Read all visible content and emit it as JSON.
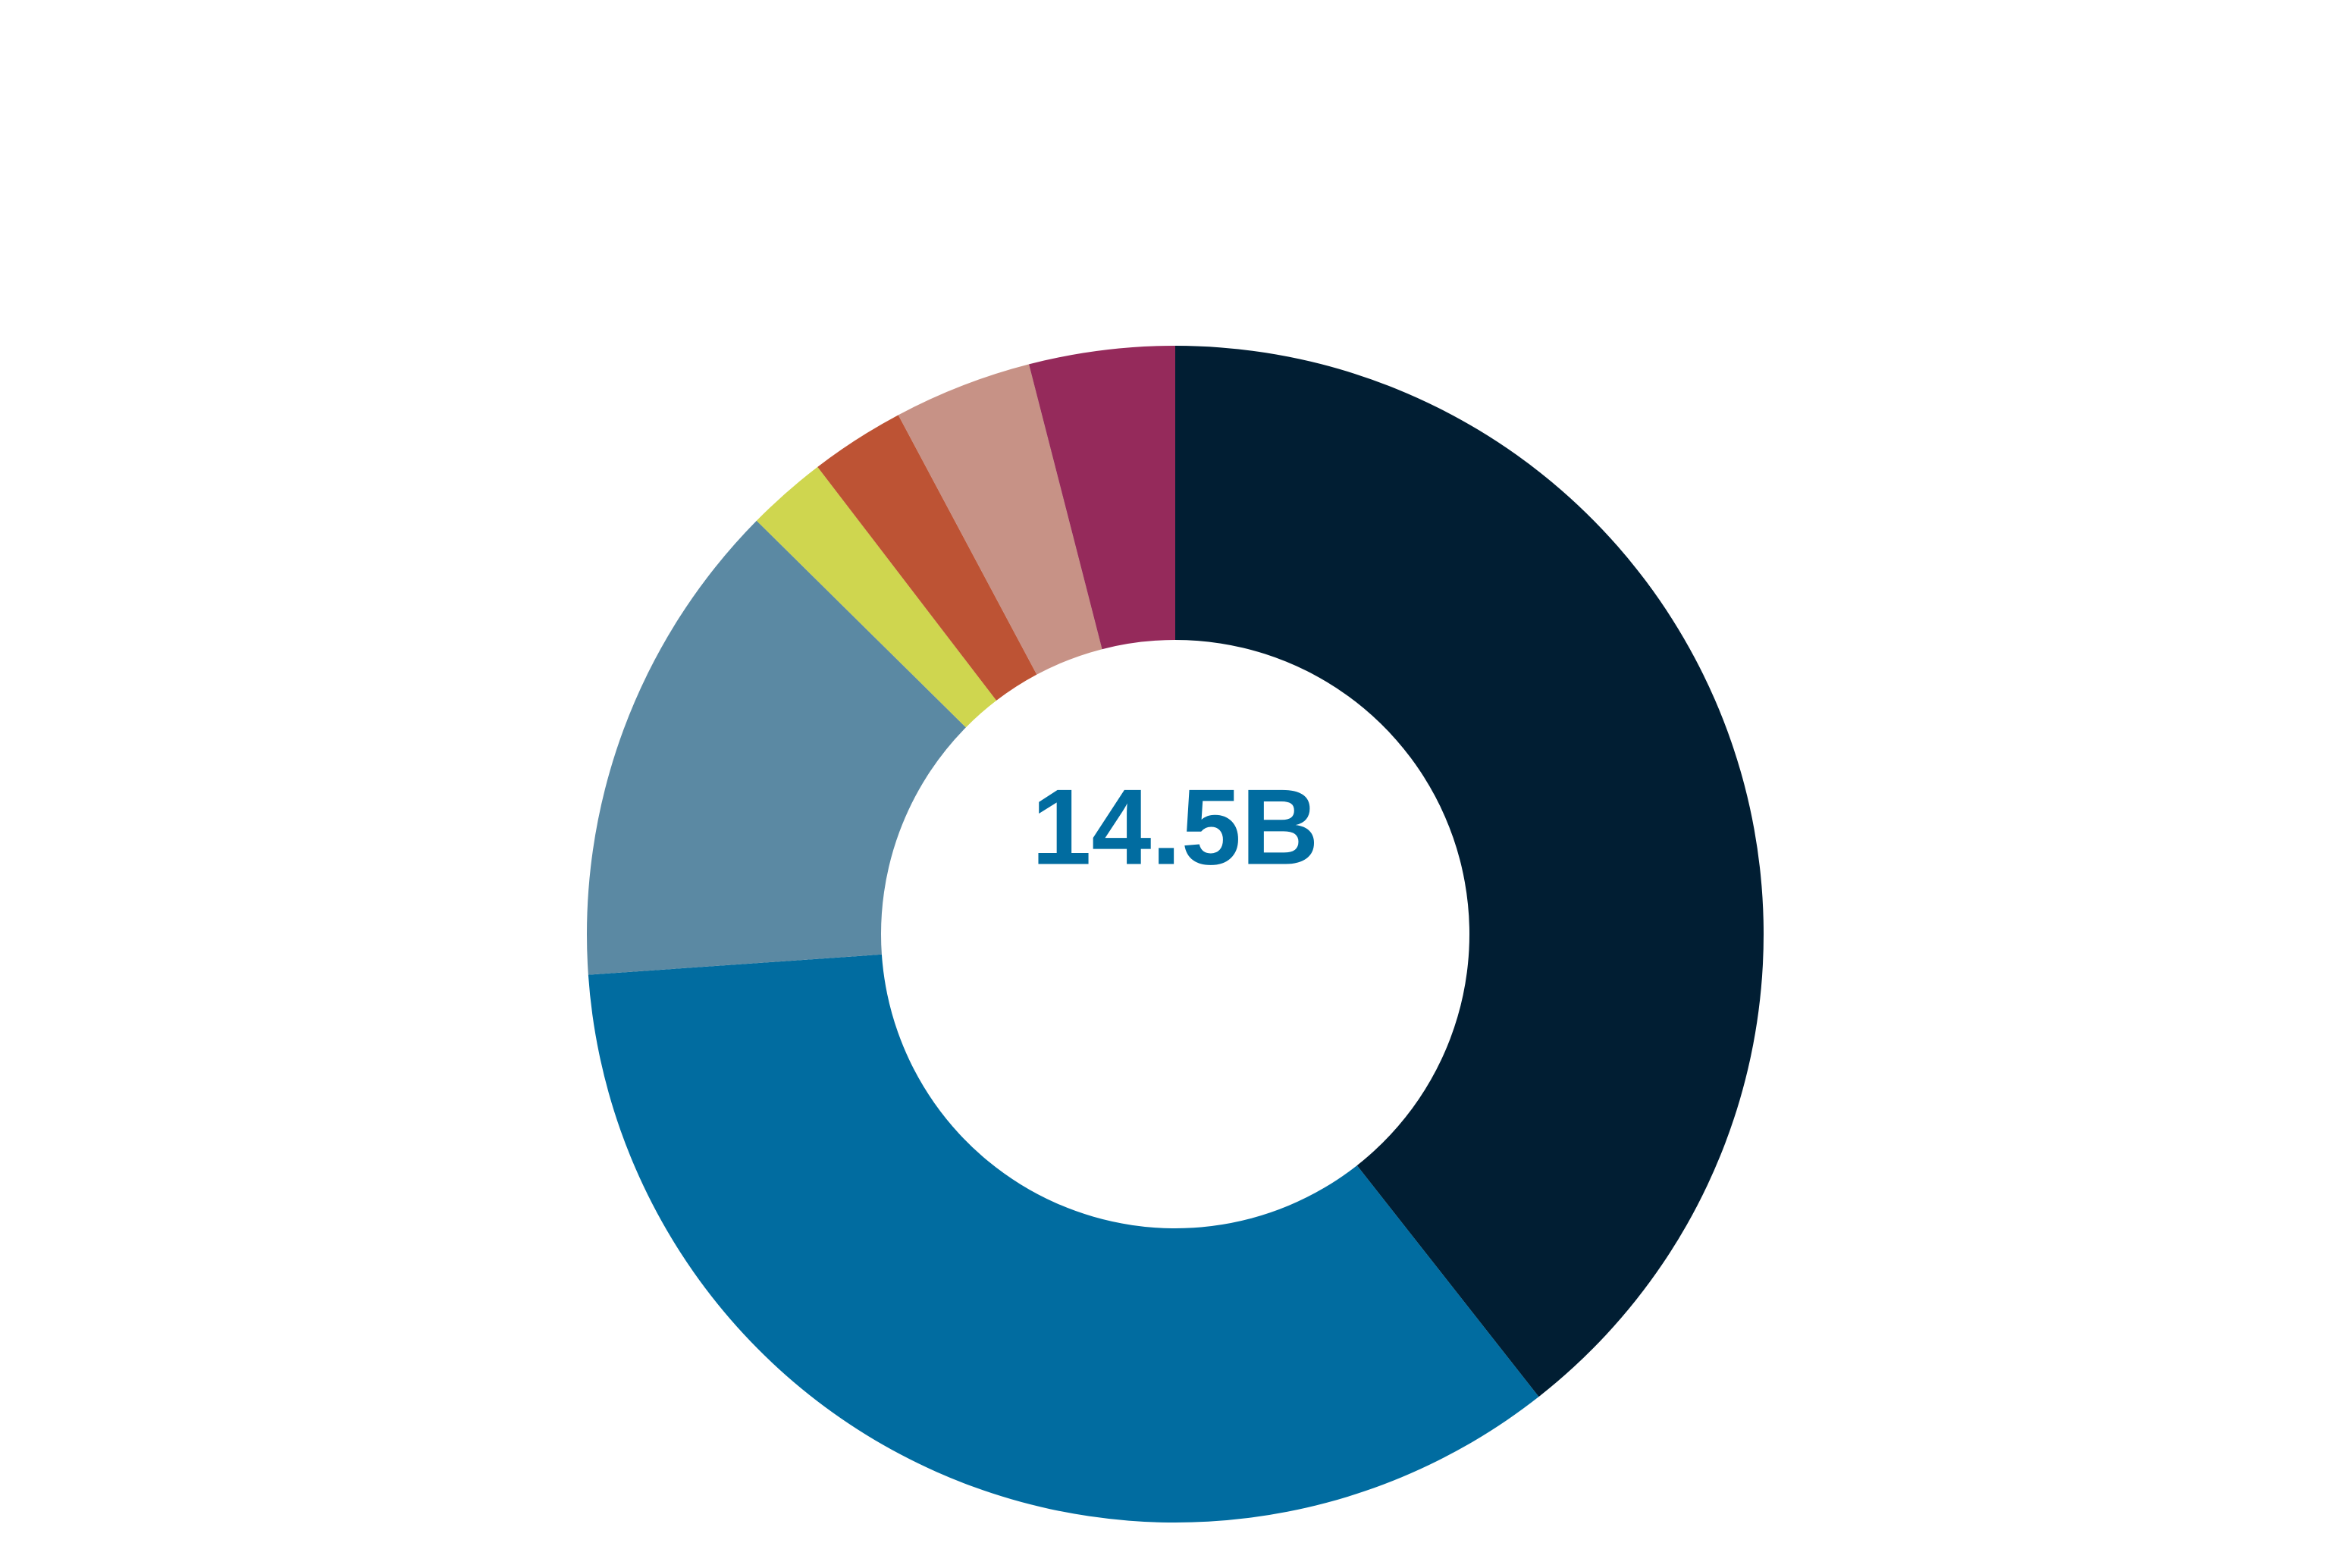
{
  "chart_data": {
    "type": "pie",
    "variant": "donut",
    "center_label": "14.5B",
    "center_label_color": "#016ca0",
    "slices": [
      {
        "value": 39.4,
        "color": "#011e33"
      },
      {
        "value": 34.5,
        "color": "#016ca0"
      },
      {
        "value": 13.5,
        "color": "#5b89a3"
      },
      {
        "value": 2.2,
        "color": "#cfd64f"
      },
      {
        "value": 2.6,
        "color": "#bd5334"
      },
      {
        "value": 3.8,
        "color": "#c79286"
      },
      {
        "value": 4.0,
        "color": "#952a5b"
      }
    ],
    "start_angle_deg": 0,
    "direction": "clockwise",
    "legend": "none"
  }
}
